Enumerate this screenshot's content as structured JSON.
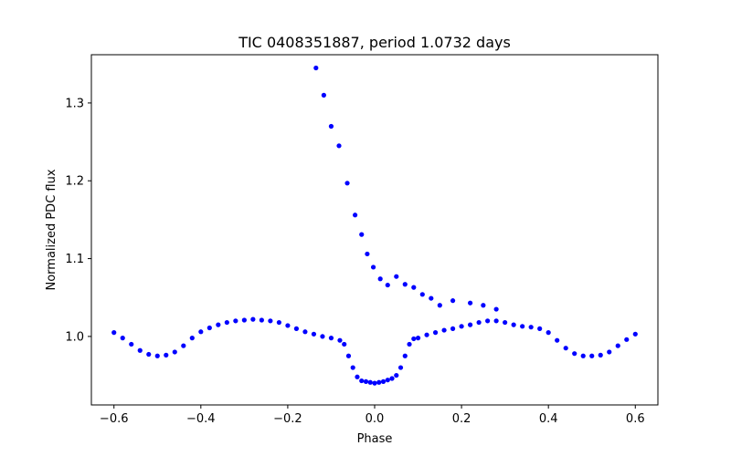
{
  "chart_data": {
    "type": "scatter",
    "title": "TIC 0408351887, period 1.0732 days",
    "xlabel": "Phase",
    "ylabel": "Normalized PDC flux",
    "xlim": [
      -0.652,
      0.652
    ],
    "ylim": [
      0.912,
      1.362
    ],
    "xticks": [
      -0.6,
      -0.4,
      -0.2,
      0.0,
      0.2,
      0.4,
      0.6
    ],
    "xtick_labels": [
      "−0.6",
      "−0.4",
      "−0.2",
      "0.0",
      "0.2",
      "0.4",
      "0.6"
    ],
    "yticks": [
      1.0,
      1.1,
      1.2,
      1.3
    ],
    "ytick_labels": [
      "1.0",
      "1.1",
      "1.2",
      "1.3"
    ],
    "grid": false,
    "marker_color": "#0000ff",
    "points_phase": [
      -0.6,
      -0.58,
      -0.56,
      -0.54,
      -0.52,
      -0.5,
      -0.48,
      -0.46,
      -0.44,
      -0.42,
      -0.4,
      -0.38,
      -0.36,
      -0.34,
      -0.32,
      -0.3,
      -0.28,
      -0.26,
      -0.24,
      -0.22,
      -0.2,
      -0.18,
      -0.16,
      -0.14,
      -0.12,
      -0.1,
      -0.08,
      -0.07,
      -0.06,
      -0.05,
      -0.04,
      -0.03,
      -0.02,
      -0.01,
      0.0,
      0.01,
      0.02,
      0.03,
      0.04,
      0.05,
      0.06,
      0.07,
      0.08,
      0.09,
      0.1,
      0.12,
      0.14,
      0.16,
      0.18,
      0.2,
      0.22,
      0.24,
      0.26,
      0.28,
      0.3,
      0.32,
      0.34,
      0.36,
      0.38,
      0.4,
      0.42,
      0.44,
      0.46,
      0.48,
      0.5,
      0.52,
      0.54,
      0.56,
      0.58,
      0.6
    ],
    "points_flux": [
      1.005,
      0.998,
      0.99,
      0.982,
      0.977,
      0.975,
      0.976,
      0.98,
      0.988,
      0.998,
      1.006,
      1.011,
      1.015,
      1.018,
      1.02,
      1.021,
      1.022,
      1.021,
      1.02,
      1.018,
      1.014,
      1.01,
      1.006,
      1.003,
      1.0,
      0.998,
      0.995,
      0.99,
      0.975,
      0.96,
      0.948,
      0.943,
      0.942,
      0.941,
      0.94,
      0.941,
      0.942,
      0.944,
      0.946,
      0.95,
      0.96,
      0.975,
      0.99,
      0.997,
      0.998,
      1.002,
      1.005,
      1.008,
      1.01,
      1.013,
      1.015,
      1.018,
      1.02,
      1.02,
      1.018,
      1.015,
      1.013,
      1.012,
      1.01,
      1.005,
      0.995,
      0.985,
      0.978,
      0.975,
      0.975,
      0.976,
      0.98,
      0.988,
      0.996,
      1.003
    ],
    "outliers_phase": [
      -0.135,
      -0.117,
      -0.1,
      -0.082,
      -0.063,
      -0.045,
      -0.03,
      -0.017,
      -0.003,
      0.013,
      0.03,
      0.05,
      0.07,
      0.09,
      0.11,
      0.13,
      0.15,
      0.18,
      0.22,
      0.25,
      0.28
    ],
    "outliers_flux": [
      1.345,
      1.31,
      1.27,
      1.245,
      1.197,
      1.156,
      1.131,
      1.106,
      1.089,
      1.074,
      1.066,
      1.077,
      1.067,
      1.063,
      1.054,
      1.049,
      1.04,
      1.046,
      1.043,
      1.04,
      1.035
    ]
  }
}
